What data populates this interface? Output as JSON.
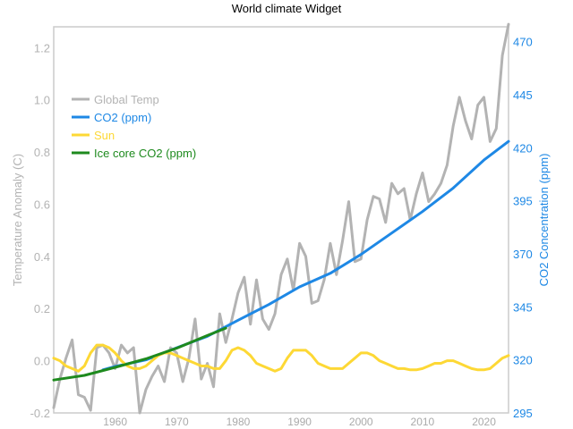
{
  "chart_data": {
    "type": "line",
    "title": "World climate Widget",
    "xlabel": "",
    "ylabel_left": "Temperature Anomaly (C)",
    "ylabel_right": "CO2 Concentration (ppm)",
    "xlim": [
      1950,
      2024
    ],
    "ylim_left": [
      -0.2,
      1.28
    ],
    "ylim_right": [
      295,
      477
    ],
    "x_ticks": [
      1960,
      1970,
      1980,
      1990,
      2000,
      2010,
      2020
    ],
    "y_ticks_left": [
      -0.2,
      0.0,
      0.2,
      0.4,
      0.6,
      0.8,
      1.0,
      1.2
    ],
    "y_ticks_left_labels": [
      "-0.2",
      "0.0",
      "0.2",
      "0.4",
      "0.6",
      "0.8",
      "1.0",
      "1.2"
    ],
    "y_ticks_right": [
      295,
      320,
      345,
      370,
      395,
      420,
      445,
      470
    ],
    "grid": false,
    "legend_position": "upper-left",
    "colors": {
      "axis_left": "#b3b3b3",
      "axis_right": "#1e88e5",
      "tick_x": "#aaaaaa",
      "frame": "#cccccc"
    },
    "series": [
      {
        "name": "Global Temp",
        "axis": "left",
        "color": "#b3b3b3",
        "x": [
          1950,
          1951,
          1952,
          1953,
          1954,
          1955,
          1956,
          1957,
          1958,
          1959,
          1960,
          1961,
          1962,
          1963,
          1964,
          1965,
          1966,
          1967,
          1968,
          1969,
          1970,
          1971,
          1972,
          1973,
          1974,
          1975,
          1976,
          1977,
          1978,
          1979,
          1980,
          1981,
          1982,
          1983,
          1984,
          1985,
          1986,
          1987,
          1988,
          1989,
          1990,
          1991,
          1992,
          1993,
          1994,
          1995,
          1996,
          1997,
          1998,
          1999,
          2000,
          2001,
          2002,
          2003,
          2004,
          2005,
          2006,
          2007,
          2008,
          2009,
          2010,
          2011,
          2012,
          2013,
          2014,
          2015,
          2016,
          2017,
          2018,
          2019,
          2020,
          2021,
          2022,
          2023,
          2024
        ],
        "values": [
          -0.18,
          -0.07,
          0.01,
          0.08,
          -0.13,
          -0.14,
          -0.19,
          0.05,
          0.06,
          0.03,
          -0.03,
          0.06,
          0.03,
          0.05,
          -0.2,
          -0.11,
          -0.06,
          -0.02,
          -0.08,
          0.05,
          0.03,
          -0.08,
          0.01,
          0.16,
          -0.07,
          -0.01,
          -0.1,
          0.18,
          0.07,
          0.16,
          0.26,
          0.32,
          0.14,
          0.31,
          0.16,
          0.12,
          0.18,
          0.33,
          0.39,
          0.27,
          0.45,
          0.4,
          0.22,
          0.23,
          0.31,
          0.45,
          0.33,
          0.46,
          0.61,
          0.38,
          0.39,
          0.54,
          0.63,
          0.62,
          0.53,
          0.68,
          0.64,
          0.66,
          0.54,
          0.64,
          0.72,
          0.61,
          0.64,
          0.68,
          0.75,
          0.9,
          1.01,
          0.92,
          0.85,
          0.98,
          1.01,
          0.84,
          0.89,
          1.17,
          1.29
        ]
      },
      {
        "name": "CO2 (ppm)",
        "axis": "right",
        "color": "#1e88e5",
        "x": [
          1958,
          1960,
          1965,
          1970,
          1975,
          1980,
          1985,
          1990,
          1995,
          2000,
          2005,
          2010,
          2015,
          2020,
          2024
        ],
        "values": [
          315.3,
          316.9,
          320.0,
          325.7,
          331.1,
          338.7,
          346.1,
          354.4,
          360.8,
          369.7,
          379.8,
          389.9,
          401.0,
          414.2,
          423.0
        ]
      },
      {
        "name": "Sun",
        "axis": "left",
        "color": "#fdd835",
        "x": [
          1950,
          1951,
          1952,
          1953,
          1954,
          1955,
          1956,
          1957,
          1958,
          1959,
          1960,
          1961,
          1962,
          1963,
          1964,
          1965,
          1966,
          1967,
          1968,
          1969,
          1970,
          1971,
          1972,
          1973,
          1974,
          1975,
          1976,
          1977,
          1978,
          1979,
          1980,
          1981,
          1982,
          1983,
          1984,
          1985,
          1986,
          1987,
          1988,
          1989,
          1990,
          1991,
          1992,
          1993,
          1994,
          1995,
          1996,
          1997,
          1998,
          1999,
          2000,
          2001,
          2002,
          2003,
          2004,
          2005,
          2006,
          2007,
          2008,
          2009,
          2010,
          2011,
          2012,
          2013,
          2014,
          2015,
          2016,
          2017,
          2018,
          2019,
          2020,
          2021,
          2022,
          2023,
          2024
        ],
        "values": [
          0.01,
          0.0,
          -0.02,
          -0.03,
          -0.04,
          -0.02,
          0.03,
          0.06,
          0.06,
          0.05,
          0.03,
          0.0,
          -0.02,
          -0.03,
          -0.03,
          -0.02,
          0.0,
          0.02,
          0.03,
          0.03,
          0.02,
          0.01,
          0.0,
          -0.01,
          -0.02,
          -0.02,
          -0.03,
          -0.03,
          0.0,
          0.04,
          0.05,
          0.04,
          0.02,
          -0.01,
          -0.02,
          -0.03,
          -0.04,
          -0.03,
          0.01,
          0.04,
          0.04,
          0.04,
          0.02,
          -0.01,
          -0.02,
          -0.03,
          -0.03,
          -0.03,
          -0.01,
          0.01,
          0.03,
          0.03,
          0.02,
          0.0,
          -0.01,
          -0.02,
          -0.03,
          -0.03,
          -0.035,
          -0.035,
          -0.03,
          -0.02,
          -0.01,
          -0.01,
          0.0,
          0.0,
          -0.01,
          -0.02,
          -0.03,
          -0.035,
          -0.035,
          -0.03,
          -0.01,
          0.01,
          0.02
        ]
      },
      {
        "name": "Ice core CO2 (ppm)",
        "axis": "right",
        "color": "#1e8a1e",
        "x": [
          1950,
          1955,
          1960,
          1965,
          1970,
          1975,
          1978
        ],
        "values": [
          310.5,
          312.7,
          316.5,
          320.5,
          325.5,
          331.5,
          335.0
        ]
      }
    ]
  }
}
